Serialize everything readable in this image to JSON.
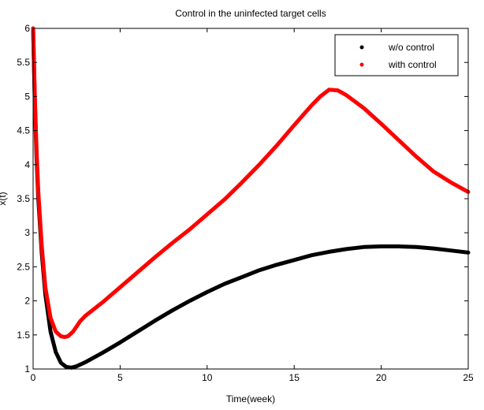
{
  "chart_data": {
    "type": "line",
    "title": "Control in the uninfected target cells",
    "xlabel": "Time(week)",
    "ylabel": "x(t)",
    "xlim": [
      0,
      25
    ],
    "ylim": [
      1,
      6
    ],
    "xticks": [
      0,
      5,
      10,
      15,
      20,
      25
    ],
    "yticks": [
      1,
      1.5,
      2,
      2.5,
      3,
      3.5,
      4,
      4.5,
      5,
      5.5,
      6
    ],
    "ytick_labels": [
      "1",
      "1.5",
      "2",
      "2.5",
      "3",
      "3.5",
      "4",
      "4.5",
      "5",
      "5.5",
      "6"
    ],
    "grid": false,
    "legend_position": "top-right",
    "series": [
      {
        "name": "w/o control",
        "color": "#000000",
        "x": [
          0,
          0.1,
          0.2,
          0.3,
          0.5,
          0.7,
          1.0,
          1.3,
          1.6,
          1.9,
          2.2,
          2.5,
          3,
          4,
          5,
          6,
          7,
          8,
          9,
          10,
          11,
          12,
          13,
          14,
          15,
          16,
          17,
          18,
          19,
          20,
          21,
          22,
          23,
          24,
          25
        ],
        "y": [
          6.0,
          4.9,
          4.1,
          3.5,
          2.7,
          2.1,
          1.55,
          1.25,
          1.09,
          1.03,
          1.02,
          1.04,
          1.1,
          1.24,
          1.39,
          1.55,
          1.71,
          1.86,
          2.0,
          2.13,
          2.25,
          2.35,
          2.45,
          2.53,
          2.6,
          2.67,
          2.72,
          2.76,
          2.79,
          2.8,
          2.8,
          2.79,
          2.77,
          2.74,
          2.71
        ]
      },
      {
        "name": "with control",
        "color": "#ff0000",
        "x": [
          0,
          0.1,
          0.2,
          0.3,
          0.5,
          0.7,
          1.0,
          1.3,
          1.6,
          1.8,
          2.0,
          2.3,
          2.7,
          3,
          4,
          5,
          6,
          7,
          8,
          9,
          10,
          11,
          12,
          13,
          14,
          15,
          16,
          16.5,
          17,
          17.5,
          18,
          19,
          20,
          21,
          22,
          23,
          24,
          25
        ],
        "y": [
          6.0,
          5.0,
          4.2,
          3.6,
          2.8,
          2.2,
          1.75,
          1.55,
          1.48,
          1.47,
          1.48,
          1.55,
          1.7,
          1.78,
          1.98,
          2.2,
          2.42,
          2.64,
          2.85,
          3.05,
          3.27,
          3.49,
          3.74,
          4.0,
          4.28,
          4.58,
          4.87,
          5.0,
          5.1,
          5.09,
          5.02,
          4.83,
          4.6,
          4.36,
          4.12,
          3.9,
          3.74,
          3.6
        ]
      }
    ]
  }
}
